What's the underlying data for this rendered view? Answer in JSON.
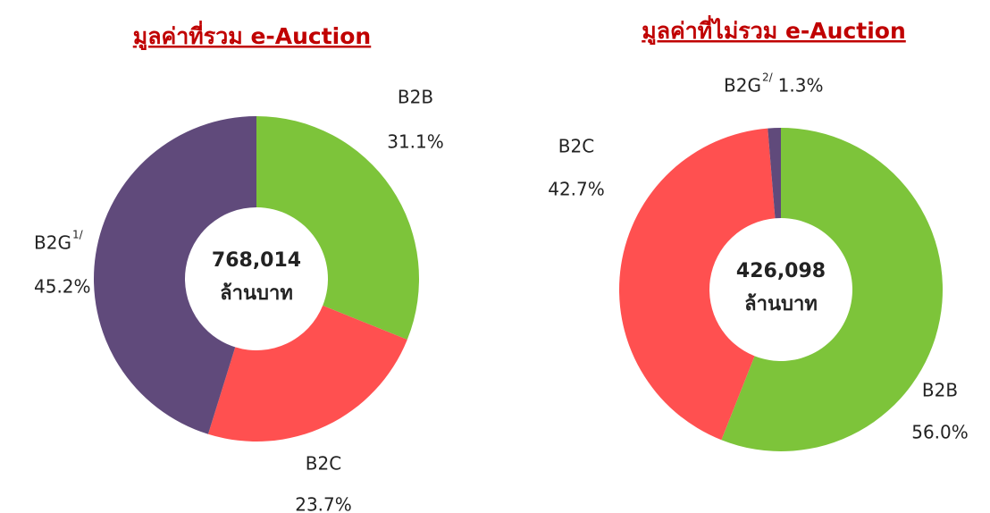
{
  "chart_data": [
    {
      "type": "donut",
      "title": "มูลค่าที่รวม e-Auction",
      "categories": [
        "B2B",
        "B2C",
        "B2G"
      ],
      "category_superscripts": [
        null,
        null,
        "1/"
      ],
      "values": [
        31.1,
        23.7,
        45.2
      ],
      "value_labels": [
        "31.1%",
        "23.7%",
        "45.2%"
      ],
      "colors": [
        "#7dc43a",
        "#ff5050",
        "#604a7b"
      ],
      "center_label": "768,014",
      "center_unit": "ล้านบาท"
    },
    {
      "type": "donut",
      "title": "มูลค่าที่ไม่รวม e-Auction",
      "categories": [
        "B2B",
        "B2C",
        "B2G"
      ],
      "category_superscripts": [
        null,
        null,
        "2/"
      ],
      "values": [
        56.0,
        42.7,
        1.3
      ],
      "value_labels": [
        "56.0%",
        "42.7%",
        "1.3%"
      ],
      "colors": [
        "#7dc43a",
        "#ff5050",
        "#604a7b"
      ],
      "center_label": "426,098",
      "center_unit": "ล้านบาท"
    }
  ]
}
